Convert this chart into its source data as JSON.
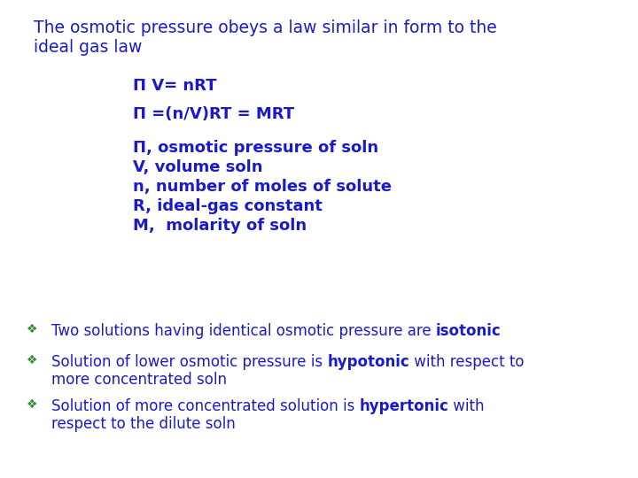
{
  "background_color": "#ffffff",
  "text_color_blue": "#1a1acc",
  "text_color_green": "#2d8a2d",
  "title_line1": "The osmotic pressure obeys a law similar in form to the",
  "title_line2": "ideal gas law",
  "eq1": "Π V= nRT",
  "eq2": "Π =(n/V)RT = MRT",
  "variables": [
    "Π, osmotic pressure of soln",
    "V, volume soln",
    "n, number of moles of solute",
    "R, ideal-gas constant",
    "M,  molarity of soln"
  ],
  "bullets": [
    {
      "normal": "Two solutions having identical osmotic pressure are ",
      "bold": "isotonic",
      "rest": ""
    },
    {
      "normal": "Solution of lower osmotic pressure is ",
      "bold": "hypotonic",
      "rest": " with respect to"
    },
    {
      "normal": "Solution of more concentrated solution is ",
      "bold": "hypertonic",
      "rest": " with"
    }
  ],
  "bullet2_line2": "more concentrated soln",
  "bullet3_line2": "respect to the dilute soln",
  "bullet_symbol": "❖",
  "title_fontsize": 13.5,
  "eq_fontsize": 13,
  "var_fontsize": 13,
  "bullet_fontsize": 12
}
